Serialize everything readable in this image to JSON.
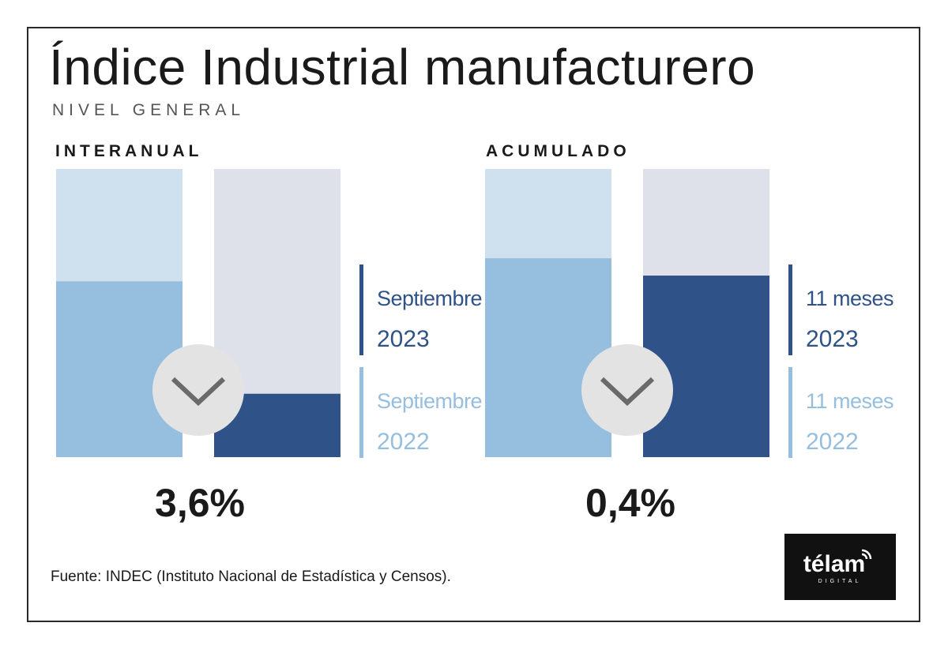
{
  "header": {
    "title": "Índice Industrial manufacturero",
    "subtitle": "NIVEL GENERAL"
  },
  "colors": {
    "light_bg": "#cfe0ef",
    "light_fill": "#95bedf",
    "dark_bg": "#dfe1ea",
    "dark_fill": "#2f5288",
    "circle": "#e3e3e3",
    "chevron": "#6a6a6a"
  },
  "chart_data": [
    {
      "type": "bar",
      "title": "INTERANUAL",
      "categories": [
        "Septiembre 2022",
        "Septiembre 2023"
      ],
      "values": [
        0.61,
        0.22
      ],
      "value_unit": "fraction of bar height (illustrative)",
      "change_label": "3,6%",
      "direction": "down",
      "legend": [
        {
          "line1": "Septiembre",
          "line2": "2023",
          "color": "#2f5288"
        },
        {
          "line1": "Septiembre",
          "line2": "2022",
          "color": "#95bedf"
        }
      ]
    },
    {
      "type": "bar",
      "title": "ACUMULADO",
      "categories": [
        "11 meses 2022",
        "11 meses 2023"
      ],
      "values": [
        0.69,
        0.63
      ],
      "value_unit": "fraction of bar height (illustrative)",
      "change_label": "0,4%",
      "direction": "down",
      "legend": [
        {
          "line1": "11 meses",
          "line2": "2023",
          "color": "#2f5288"
        },
        {
          "line1": "11 meses",
          "line2": "2022",
          "color": "#95bedf"
        }
      ]
    }
  ],
  "source": "Fuente: INDEC (Instituto Nacional de Estadística y Censos).",
  "logo": {
    "brand": "télam",
    "sub": "DIGITAL"
  }
}
